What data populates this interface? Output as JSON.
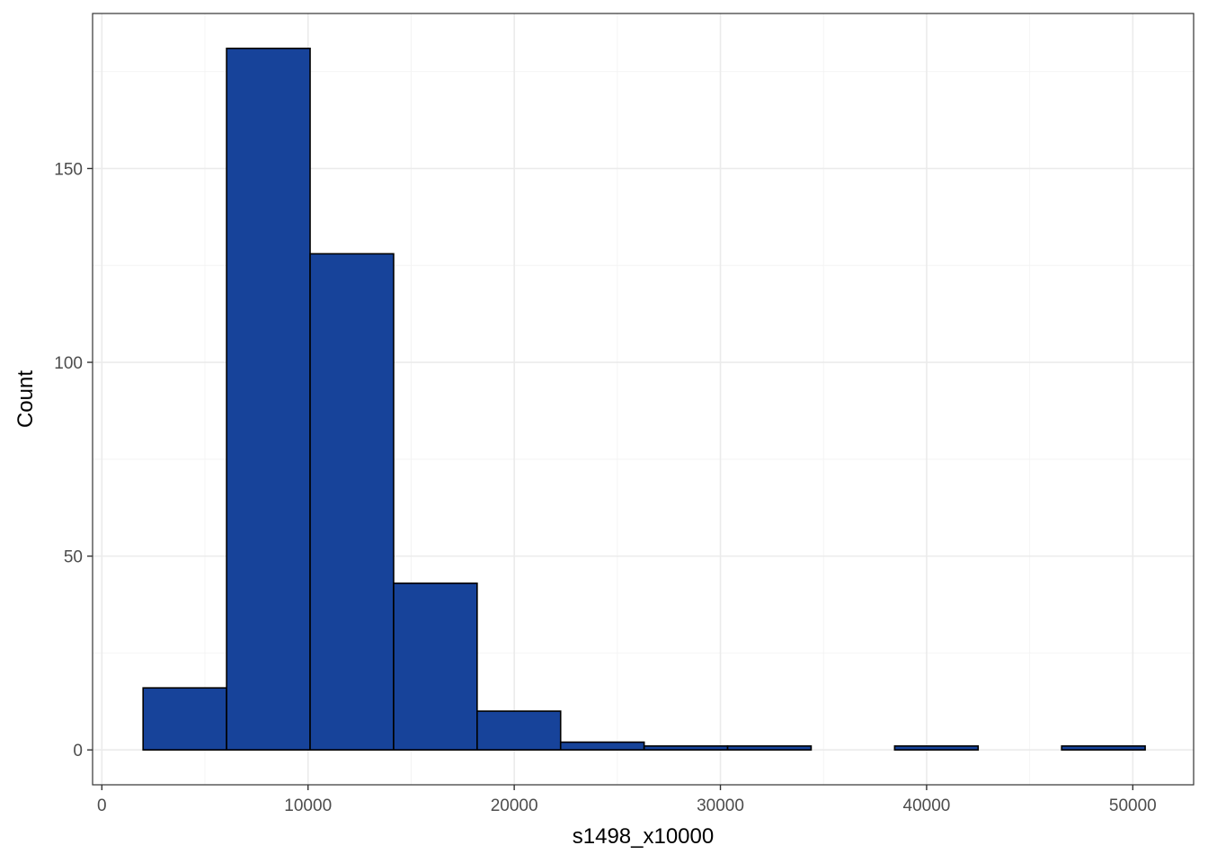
{
  "chart_data": {
    "type": "bar",
    "subtype": "histogram",
    "title": "",
    "xlabel": "s1498_x10000",
    "ylabel": "Count",
    "xlim": [
      -450,
      52950
    ],
    "ylim": [
      -9,
      190
    ],
    "x_ticks": [
      0,
      10000,
      20000,
      30000,
      40000,
      50000
    ],
    "x_minor_ticks": [
      5000,
      15000,
      25000,
      35000,
      45000
    ],
    "y_ticks": [
      0,
      50,
      100,
      150
    ],
    "y_minor_ticks": [
      25,
      75,
      125,
      175
    ],
    "bins": [
      {
        "start": 2000,
        "end": 6050,
        "count": 16
      },
      {
        "start": 6050,
        "end": 10100,
        "count": 181
      },
      {
        "start": 10100,
        "end": 14150,
        "count": 128
      },
      {
        "start": 14150,
        "end": 18200,
        "count": 43
      },
      {
        "start": 18200,
        "end": 22250,
        "count": 10
      },
      {
        "start": 22250,
        "end": 26300,
        "count": 2
      },
      {
        "start": 26300,
        "end": 30350,
        "count": 1
      },
      {
        "start": 30350,
        "end": 34400,
        "count": 1
      },
      {
        "start": 34400,
        "end": 38450,
        "count": 0
      },
      {
        "start": 38450,
        "end": 42500,
        "count": 1
      },
      {
        "start": 42500,
        "end": 46550,
        "count": 0
      },
      {
        "start": 46550,
        "end": 50600,
        "count": 1
      }
    ],
    "grid": true,
    "legend": "none",
    "colors": {
      "bar_fill": "#17439A",
      "bar_stroke": "#000000",
      "grid_major": "#EBEBEB",
      "grid_minor": "#F4F4F4",
      "panel_border": "#333333"
    }
  }
}
